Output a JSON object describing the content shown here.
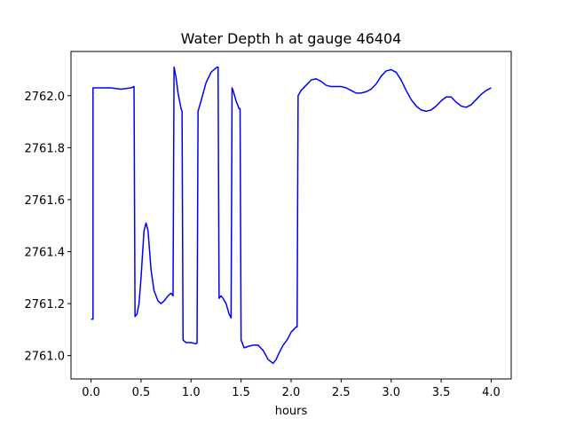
{
  "chart_data": {
    "type": "line",
    "title": "Water Depth h at gauge 46404",
    "xlabel": "hours",
    "ylabel": "",
    "xlim": [
      -0.2,
      4.2
    ],
    "ylim": [
      2760.91,
      2762.17
    ],
    "xticks": [
      0.0,
      0.5,
      1.0,
      1.5,
      2.0,
      2.5,
      3.0,
      3.5,
      4.0
    ],
    "xtick_labels": [
      "0.0",
      "0.5",
      "1.0",
      "1.5",
      "2.0",
      "2.5",
      "3.0",
      "3.5",
      "4.0"
    ],
    "yticks": [
      2761.0,
      2761.2,
      2761.4,
      2761.6,
      2761.8,
      2762.0
    ],
    "ytick_labels": [
      "2761.0",
      "2761.2",
      "2761.4",
      "2761.6",
      "2761.8",
      "2762.0"
    ],
    "grid": false,
    "series": [
      {
        "color": "#0000ff",
        "x": [
          0.0,
          0.02,
          0.02,
          0.05,
          0.1,
          0.2,
          0.3,
          0.4,
          0.43,
          0.44,
          0.46,
          0.48,
          0.5,
          0.53,
          0.55,
          0.57,
          0.6,
          0.63,
          0.67,
          0.7,
          0.73,
          0.77,
          0.8,
          0.82,
          0.83,
          0.85,
          0.87,
          0.9,
          0.91,
          0.92,
          0.95,
          1.0,
          1.05,
          1.06,
          1.07,
          1.1,
          1.15,
          1.2,
          1.26,
          1.27,
          1.28,
          1.3,
          1.32,
          1.35,
          1.38,
          1.4,
          1.41,
          1.42,
          1.45,
          1.48,
          1.49,
          1.5,
          1.53,
          1.57,
          1.62,
          1.67,
          1.72,
          1.77,
          1.82,
          1.85,
          1.88,
          1.92,
          1.96,
          2.0,
          2.05,
          2.06,
          2.07,
          2.1,
          2.15,
          2.2,
          2.25,
          2.3,
          2.35,
          2.4,
          2.45,
          2.5,
          2.55,
          2.6,
          2.65,
          2.7,
          2.75,
          2.8,
          2.85,
          2.9,
          2.95,
          3.0,
          3.05,
          3.1,
          3.15,
          3.2,
          3.25,
          3.3,
          3.35,
          3.4,
          3.45,
          3.5,
          3.55,
          3.6,
          3.65,
          3.7,
          3.75,
          3.8,
          3.85,
          3.9,
          3.95,
          4.0
        ],
        "y": [
          2761.14,
          2761.14,
          2762.03,
          2762.03,
          2762.03,
          2762.03,
          2762.025,
          2762.03,
          2762.035,
          2761.15,
          2761.16,
          2761.2,
          2761.3,
          2761.48,
          2761.51,
          2761.48,
          2761.33,
          2761.25,
          2761.21,
          2761.2,
          2761.21,
          2761.23,
          2761.24,
          2761.23,
          2762.11,
          2762.07,
          2762.01,
          2761.95,
          2761.94,
          2761.06,
          2761.05,
          2761.05,
          2761.045,
          2761.05,
          2761.94,
          2761.98,
          2762.05,
          2762.09,
          2762.11,
          2762.11,
          2761.22,
          2761.23,
          2761.22,
          2761.2,
          2761.16,
          2761.145,
          2762.03,
          2762.02,
          2761.98,
          2761.95,
          2761.95,
          2761.06,
          2761.03,
          2761.035,
          2761.04,
          2761.04,
          2761.02,
          2760.985,
          2760.97,
          2760.985,
          2761.01,
          2761.04,
          2761.06,
          2761.09,
          2761.11,
          2761.11,
          2762.0,
          2762.02,
          2762.04,
          2762.06,
          2762.065,
          2762.055,
          2762.04,
          2762.035,
          2762.035,
          2762.035,
          2762.03,
          2762.02,
          2762.01,
          2762.01,
          2762.015,
          2762.025,
          2762.045,
          2762.075,
          2762.095,
          2762.1,
          2762.09,
          2762.06,
          2762.02,
          2761.985,
          2761.96,
          2761.945,
          2761.94,
          2761.945,
          2761.96,
          2761.98,
          2761.995,
          2761.995,
          2761.975,
          2761.96,
          2761.955,
          2761.965,
          2761.985,
          2762.005,
          2762.02,
          2762.03
        ]
      }
    ]
  }
}
